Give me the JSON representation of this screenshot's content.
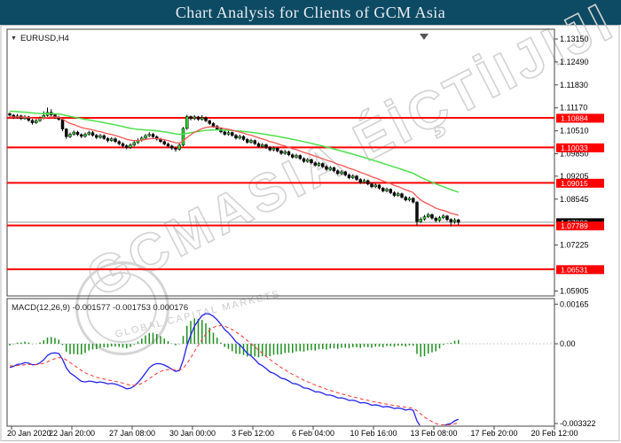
{
  "title_bar": {
    "title": "Chart Analysis for Clients of GCM Asia"
  },
  "symbol_panel": {
    "chevron": "▼",
    "symbol_label": "EURUSD,H4"
  },
  "watermark": {
    "main": "GCMASIA ÉİÇTİIJIJI",
    "subtitle": "GLOBAL CAPITAL MARKETS"
  },
  "indicator_label": "MACD(12,26,9) -0.001577 -0.001753 0.000176",
  "chart_data": {
    "type": "candlestick+macd",
    "symbol": "EURUSD",
    "timeframe": "H4",
    "title": "Chart Analysis for Clients of GCM Asia",
    "grid": false,
    "price_axis_ticks": [
      "1.13150",
      "1.12490",
      "1.11830",
      "1.11170",
      "1.10510",
      "1.09850",
      "1.09205",
      "1.08545",
      "1.07225",
      "1.05905"
    ],
    "price_ylim": [
      1.05905,
      1.1315
    ],
    "x_axis_labels": [
      "20 Jan 2020",
      "22 Jan 20:00",
      "27 Jan 08:00",
      "30 Jan 00:00",
      "3 Feb 12:00",
      "6 Feb 04:00",
      "10 Feb 16:00",
      "13 Feb 08:00",
      "17 Feb 20:00",
      "20 Feb 12:00"
    ],
    "horizontal_lines": {
      "color": "#ff0000",
      "prices": [
        1.10884,
        1.10033,
        1.09015,
        1.07789,
        1.06531
      ]
    },
    "bid": {
      "price": 1.0788,
      "line_color": "#9a9a9a",
      "label_bg": "#000000"
    },
    "marker": {
      "type": "down-triangle",
      "x": 478,
      "color": "#555555"
    },
    "colors": {
      "bull": "#2fd32f",
      "bear": "#0d0d0d",
      "wick": "#000000",
      "ma_fast": "#f65555",
      "ma_slow": "#4ce04c",
      "macd_line": "#2222ee",
      "macd_signal": "#ff3333",
      "macd_hist": "#1f8f1f"
    },
    "moving_averages": [
      {
        "name": "ema-fast-red",
        "period": 13,
        "seed_offset": -0.0006
      },
      {
        "name": "ema-slow-green",
        "period": 45,
        "seed_offset": 0.0012
      }
    ],
    "macd": {
      "params": [
        12,
        26,
        9
      ],
      "display_values": [
        "-0.001577",
        "-0.001753",
        "0.000176"
      ],
      "axis_ticks": [
        "0.00165",
        "0.00",
        "-0.003322"
      ],
      "ylim": [
        -0.003322,
        0.00165
      ],
      "seed_fast_offset": -0.0004,
      "seed_slow_offset": 0.0007,
      "seed_signal": -0.0009
    },
    "candles_ohlc": [
      [
        1.11,
        1.1104,
        1.1092,
        1.1096
      ],
      [
        1.1096,
        1.1099,
        1.1085,
        1.1089
      ],
      [
        1.1089,
        1.1099,
        1.1086,
        1.1094
      ],
      [
        1.1094,
        1.1097,
        1.1082,
        1.1086
      ],
      [
        1.1086,
        1.1096,
        1.1083,
        1.1091
      ],
      [
        1.1091,
        1.1094,
        1.1077,
        1.1081
      ],
      [
        1.1081,
        1.1085,
        1.1069,
        1.1074
      ],
      [
        1.1074,
        1.1085,
        1.1071,
        1.108
      ],
      [
        1.108,
        1.1092,
        1.1077,
        1.1087
      ],
      [
        1.1087,
        1.1107,
        1.1084,
        1.1095
      ],
      [
        1.1095,
        1.1118,
        1.1092,
        1.1104
      ],
      [
        1.1104,
        1.1113,
        1.1093,
        1.1097
      ],
      [
        1.1097,
        1.1101,
        1.1086,
        1.109
      ],
      [
        1.109,
        1.1094,
        1.108,
        1.1084
      ],
      [
        1.1084,
        1.1087,
        1.105,
        1.1056
      ],
      [
        1.1056,
        1.1059,
        1.1028,
        1.1034
      ],
      [
        1.1034,
        1.1046,
        1.103,
        1.1041
      ],
      [
        1.1041,
        1.1052,
        1.1037,
        1.1047
      ],
      [
        1.1047,
        1.1051,
        1.1036,
        1.104
      ],
      [
        1.104,
        1.1044,
        1.103,
        1.1035
      ],
      [
        1.1035,
        1.1046,
        1.1031,
        1.1041
      ],
      [
        1.1041,
        1.1051,
        1.1037,
        1.1046
      ],
      [
        1.1046,
        1.105,
        1.1034,
        1.1038
      ],
      [
        1.1038,
        1.1042,
        1.1027,
        1.1032
      ],
      [
        1.1032,
        1.1042,
        1.1028,
        1.1037
      ],
      [
        1.1037,
        1.1041,
        1.1025,
        1.1029
      ],
      [
        1.1029,
        1.1033,
        1.1018,
        1.1023
      ],
      [
        1.1023,
        1.1033,
        1.1019,
        1.1028
      ],
      [
        1.1028,
        1.1032,
        1.1016,
        1.102
      ],
      [
        1.102,
        1.1024,
        1.1009,
        1.1014
      ],
      [
        1.1014,
        1.1018,
        1.1003,
        1.1008
      ],
      [
        1.1008,
        1.1012,
        1.0998,
        1.1003
      ],
      [
        1.1003,
        1.1015,
        1.0999,
        1.101
      ],
      [
        1.101,
        1.1022,
        1.1006,
        1.1017
      ],
      [
        1.1017,
        1.1029,
        1.1013,
        1.1024
      ],
      [
        1.1024,
        1.1035,
        1.102,
        1.103
      ],
      [
        1.103,
        1.1042,
        1.1026,
        1.1037
      ],
      [
        1.1037,
        1.1047,
        1.1033,
        1.1041
      ],
      [
        1.1041,
        1.1045,
        1.103,
        1.1034
      ],
      [
        1.1034,
        1.1038,
        1.1023,
        1.1027
      ],
      [
        1.1027,
        1.1031,
        1.1016,
        1.102
      ],
      [
        1.102,
        1.1024,
        1.1009,
        1.1013
      ],
      [
        1.1013,
        1.1017,
        1.1003,
        1.1007
      ],
      [
        1.1007,
        1.1011,
        1.0996,
        1.1001
      ],
      [
        1.1001,
        1.1005,
        1.0991,
        1.0998
      ],
      [
        1.0998,
        1.1014,
        1.0994,
        1.101
      ],
      [
        1.101,
        1.1062,
        1.1006,
        1.1058
      ],
      [
        1.1058,
        1.1097,
        1.1054,
        1.1092
      ],
      [
        1.1092,
        1.1095,
        1.1081,
        1.1086
      ],
      [
        1.1086,
        1.1096,
        1.1082,
        1.1091
      ],
      [
        1.1091,
        1.1094,
        1.108,
        1.1084
      ],
      [
        1.1084,
        1.1096,
        1.108,
        1.1089
      ],
      [
        1.1089,
        1.1092,
        1.1076,
        1.108
      ],
      [
        1.108,
        1.1083,
        1.1068,
        1.1072
      ],
      [
        1.1072,
        1.1076,
        1.106,
        1.1064
      ],
      [
        1.1064,
        1.1068,
        1.1052,
        1.1056
      ],
      [
        1.1056,
        1.106,
        1.1044,
        1.1048
      ],
      [
        1.1048,
        1.1052,
        1.1037,
        1.1041
      ],
      [
        1.1041,
        1.1051,
        1.1037,
        1.1046
      ],
      [
        1.1046,
        1.1049,
        1.1034,
        1.1038
      ],
      [
        1.1038,
        1.1042,
        1.1026,
        1.103
      ],
      [
        1.103,
        1.104,
        1.1026,
        1.1035
      ],
      [
        1.1035,
        1.1038,
        1.1022,
        1.1026
      ],
      [
        1.1026,
        1.103,
        1.1014,
        1.1018
      ],
      [
        1.1018,
        1.1028,
        1.1014,
        1.1023
      ],
      [
        1.1023,
        1.1026,
        1.101,
        1.1014
      ],
      [
        1.1014,
        1.1018,
        1.1002,
        1.1006
      ],
      [
        1.1006,
        1.1016,
        1.1002,
        1.1011
      ],
      [
        1.1011,
        1.1014,
        1.0999,
        1.1003
      ],
      [
        1.1003,
        1.1007,
        1.0992,
        1.0996
      ],
      [
        1.0996,
        1.1006,
        1.0992,
        1.1001
      ],
      [
        1.1001,
        1.1004,
        1.0989,
        1.0993
      ],
      [
        1.0993,
        1.0997,
        1.0982,
        1.0986
      ],
      [
        1.0986,
        1.0996,
        1.0982,
        1.0991
      ],
      [
        1.0991,
        1.0994,
        1.0978,
        1.0982
      ],
      [
        1.0982,
        1.0986,
        1.0971,
        1.0975
      ],
      [
        1.0975,
        1.0985,
        1.0971,
        1.098
      ],
      [
        1.098,
        1.0983,
        1.0967,
        1.0971
      ],
      [
        1.0971,
        1.0975,
        1.0959,
        1.0963
      ],
      [
        1.0963,
        1.0973,
        1.0959,
        1.0968
      ],
      [
        1.0968,
        1.0971,
        1.0955,
        1.0959
      ],
      [
        1.0959,
        1.0963,
        1.0948,
        1.0952
      ],
      [
        1.0952,
        1.0962,
        1.0948,
        1.0957
      ],
      [
        1.0957,
        1.096,
        1.0944,
        1.0948
      ],
      [
        1.0948,
        1.0952,
        1.0936,
        1.094
      ],
      [
        1.094,
        1.095,
        1.0936,
        1.0945
      ],
      [
        1.0945,
        1.0948,
        1.0932,
        1.0936
      ],
      [
        1.0936,
        1.094,
        1.0924,
        1.0928
      ],
      [
        1.0928,
        1.0938,
        1.0924,
        1.0933
      ],
      [
        1.0933,
        1.0936,
        1.092,
        1.0924
      ],
      [
        1.0924,
        1.0928,
        1.0912,
        1.0916
      ],
      [
        1.0916,
        1.0926,
        1.0912,
        1.0921
      ],
      [
        1.0921,
        1.0924,
        1.0907,
        1.0911
      ],
      [
        1.0911,
        1.0915,
        1.0898,
        1.0903
      ],
      [
        1.0903,
        1.0913,
        1.0899,
        1.0908
      ],
      [
        1.0908,
        1.0911,
        1.0894,
        1.0898
      ],
      [
        1.0898,
        1.0902,
        1.0886,
        1.089
      ],
      [
        1.089,
        1.09,
        1.0886,
        1.0895
      ],
      [
        1.0895,
        1.0898,
        1.0882,
        1.0886
      ],
      [
        1.0886,
        1.089,
        1.0874,
        1.0878
      ],
      [
        1.0878,
        1.0888,
        1.0874,
        1.0883
      ],
      [
        1.0883,
        1.0886,
        1.0869,
        1.0873
      ],
      [
        1.0873,
        1.0877,
        1.0861,
        1.0865
      ],
      [
        1.0865,
        1.0875,
        1.0861,
        1.087
      ],
      [
        1.087,
        1.0873,
        1.0856,
        1.086
      ],
      [
        1.086,
        1.0864,
        1.0848,
        1.0852
      ],
      [
        1.0852,
        1.0862,
        1.0848,
        1.0857
      ],
      [
        1.0857,
        1.086,
        1.0842,
        1.0846
      ],
      [
        1.0846,
        1.0849,
        1.0778,
        1.079
      ],
      [
        1.079,
        1.0802,
        1.0786,
        1.0797
      ],
      [
        1.0797,
        1.0809,
        1.0793,
        1.0804
      ],
      [
        1.0804,
        1.0815,
        1.08,
        1.081
      ],
      [
        1.081,
        1.0813,
        1.0796,
        1.08
      ],
      [
        1.08,
        1.0804,
        1.0788,
        1.0793
      ],
      [
        1.0793,
        1.0806,
        1.0789,
        1.0801
      ],
      [
        1.0801,
        1.0811,
        1.0797,
        1.0806
      ],
      [
        1.0806,
        1.0809,
        1.0791,
        1.0796
      ],
      [
        1.0796,
        1.08,
        1.0776,
        1.0789
      ],
      [
        1.0789,
        1.08,
        1.0784,
        1.0795
      ],
      [
        1.0795,
        1.0798,
        1.078,
        1.0788
      ]
    ]
  }
}
